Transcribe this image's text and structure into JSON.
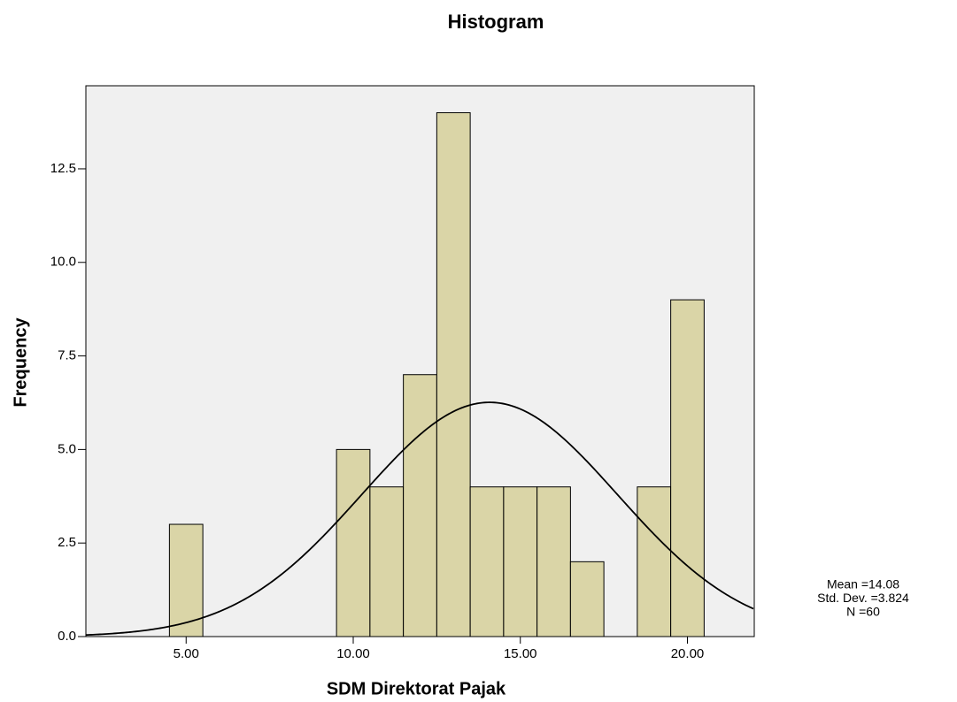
{
  "chart_data": {
    "type": "histogram",
    "title": "Histogram",
    "x_label": "SDM Direktorat Pajak",
    "y_label": "Frequency",
    "bins": [
      4.5,
      5.5,
      6.5,
      7.5,
      8.5,
      9.5,
      10.5,
      11.5,
      12.5,
      13.5,
      14.5,
      15.5,
      16.5,
      17.5,
      18.5,
      19.5,
      20.5
    ],
    "values": [
      3,
      0,
      0,
      0,
      0,
      5,
      4,
      7,
      14,
      4,
      4,
      4,
      2,
      0,
      4,
      9
    ],
    "color": "#d6d09a",
    "xlim": [
      2,
      22
    ],
    "xticks": [
      {
        "value": 5,
        "label": "5.00"
      },
      {
        "value": 10,
        "label": "10.00"
      },
      {
        "value": 15,
        "label": "15.00"
      },
      {
        "value": 20,
        "label": "20.00"
      }
    ],
    "ylim": [
      0,
      14.72
    ],
    "yticks": [
      {
        "value": 0,
        "label": "0.0"
      },
      {
        "value": 2.5,
        "label": "2.5"
      },
      {
        "value": 5,
        "label": "5.0"
      },
      {
        "value": 7.5,
        "label": "7.5"
      },
      {
        "value": 10,
        "label": "10.0"
      },
      {
        "value": 12.5,
        "label": "12.5"
      }
    ],
    "stats": {
      "mean": 14.08,
      "std_dev": 3.824,
      "n": 60,
      "labels": [
        "Mean =14.08",
        "Std. Dev. =3.824",
        "N =60"
      ]
    }
  }
}
